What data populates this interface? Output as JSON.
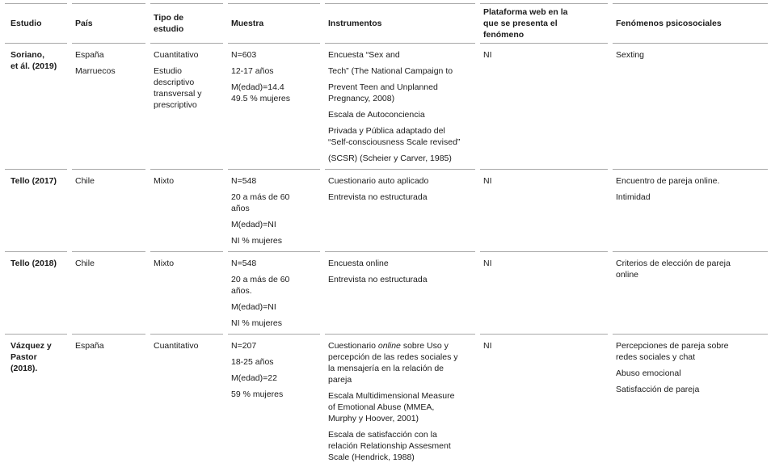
{
  "table": {
    "headers": [
      "Estudio",
      "País",
      "Tipo de\nestudio",
      "Muestra",
      "Instrumentos",
      "Plataforma web en la\nque se presenta el\nfenómeno",
      "Fenómenos psicosociales"
    ],
    "rows": [
      {
        "estudio": [
          "Soriano,\net ál. (2019)"
        ],
        "pais": [
          "España",
          "Marruecos"
        ],
        "tipo": [
          "Cuantitativo",
          "Estudio\ndescriptivo\ntransversal y\nprescriptivo"
        ],
        "muestra": [
          "N=603",
          "12-17 años",
          "M(edad)=14.4\n49.5 % mujeres"
        ],
        "instrumentos": [
          "Encuesta “Sex and",
          "Tech” (The National Campaign to",
          "Prevent Teen and Unplanned\nPregnancy, 2008)",
          "Escala de Autoconciencia",
          "Privada y Pública adaptado del\n“Self-consciousness Scale revised”",
          "(SCSR) (Scheier y Carver, 1985)"
        ],
        "plataforma": [
          "NI"
        ],
        "fenomenos": [
          "Sexting"
        ]
      },
      {
        "estudio": [
          "Tello (2017)"
        ],
        "pais": [
          "Chile"
        ],
        "tipo": [
          "Mixto"
        ],
        "muestra": [
          "N=548",
          "20 a más de 60\naños",
          "M(edad)=NI",
          "NI % mujeres"
        ],
        "instrumentos": [
          "Cuestionario auto aplicado",
          "Entrevista no estructurada"
        ],
        "plataforma": [
          "NI"
        ],
        "fenomenos": [
          "Encuentro de pareja online.",
          "Intimidad"
        ]
      },
      {
        "estudio": [
          "Tello (2018)"
        ],
        "pais": [
          "Chile"
        ],
        "tipo": [
          "Mixto"
        ],
        "muestra": [
          "N=548",
          "20 a más de 60\naños.",
          "M(edad)=NI",
          "NI % mujeres"
        ],
        "instrumentos": [
          "Encuesta online",
          "Entrevista no estructurada"
        ],
        "plataforma": [
          "NI"
        ],
        "fenomenos": [
          "Criterios de elección de pareja\nonline"
        ]
      },
      {
        "estudio": [
          "Vázquez y\nPastor\n(2018)."
        ],
        "pais": [
          "España"
        ],
        "tipo": [
          "Cuantitativo"
        ],
        "muestra": [
          "N=207",
          "18-25 años",
          "M(edad)=22",
          "59 % mujeres"
        ],
        "instrumentos_rich": {
          "pre": "Cuestionario ",
          "italic": "online",
          "post": " sobre Uso y\npercepción de las redes sociales y\nla mensajería en la relación de\npareja"
        },
        "instrumentos": [
          "Escala Multidimensional Measure\nof Emotional Abuse (MMEA,\nMurphy y Hoover, 2001)",
          "Escala de satisfacción con la\nrelación Relationship Assesment\nScale (Hendrick, 1988)"
        ],
        "plataforma": [
          "NI"
        ],
        "fenomenos": [
          "Percepciones de pareja sobre\nredes sociales y chat",
          "Abuso emocional",
          "Satisfacción de pareja"
        ]
      }
    ]
  },
  "colors": {
    "rule": "#a8a8a8",
    "text": "#1b1b1b",
    "background": "#ffffff"
  }
}
